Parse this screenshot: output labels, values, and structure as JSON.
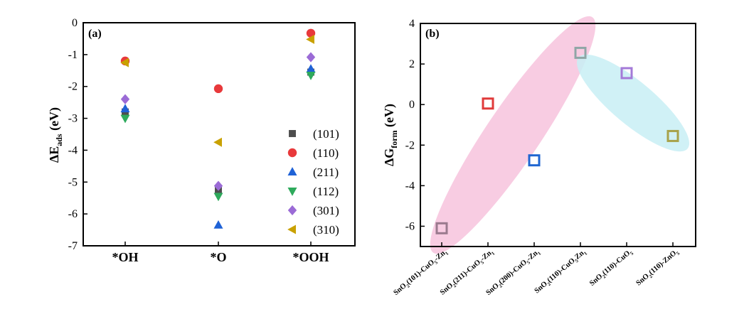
{
  "chart_data": [
    {
      "type": "scatter",
      "panel_label": "(a)",
      "ylabel": "ΔE",
      "ylabel_sub": "ads",
      "ylabel_unit": " (eV)",
      "xlabel": "",
      "categories": [
        "*OH",
        "*O",
        "*OOH"
      ],
      "ylim": [
        -7,
        0
      ],
      "yticks": [
        0,
        -1,
        -2,
        -3,
        -4,
        -5,
        -6,
        -7
      ],
      "ytick_labels": [
        "0",
        "-1",
        "-2",
        "-3",
        "-4",
        "-5",
        "-6",
        "-7"
      ],
      "grid": false,
      "legend_position": "bottom-right",
      "series": [
        {
          "name": "(101)",
          "marker": "square",
          "color": "#4d4d4d",
          "values": [
            -2.8,
            -5.25,
            -1.55
          ]
        },
        {
          "name": "(110)",
          "marker": "circle",
          "color": "#e8393b",
          "values": [
            -1.2,
            -2.07,
            -0.33
          ]
        },
        {
          "name": "(211)",
          "marker": "triangle-up",
          "color": "#1f62d6",
          "values": [
            -2.7,
            -6.35,
            -1.45
          ]
        },
        {
          "name": "(112)",
          "marker": "triangle-down",
          "color": "#2eaa5c",
          "values": [
            -3.0,
            -5.45,
            -1.65
          ]
        },
        {
          "name": "(301)",
          "marker": "diamond",
          "color": "#9b6bd6",
          "values": [
            -2.4,
            -5.12,
            -1.08
          ]
        },
        {
          "name": "(310)",
          "marker": "triangle-left",
          "color": "#c9a100",
          "values": [
            -1.25,
            -3.75,
            -0.52
          ]
        }
      ]
    },
    {
      "type": "scatter",
      "panel_label": "(b)",
      "ylabel": "ΔG",
      "ylabel_sub": "form",
      "ylabel_unit": " (eV)",
      "xlabel": "",
      "ylim": [
        -7,
        4
      ],
      "yticks": [
        4,
        2,
        0,
        -2,
        -4,
        -6
      ],
      "ytick_labels": [
        "4",
        "2",
        "0",
        "-2",
        "-4",
        "-6"
      ],
      "grid": false,
      "categories": [
        {
          "parts": [
            [
              "SnO",
              ""
            ],
            [
              "2",
              "sub"
            ],
            [
              "(101)-CuO",
              ""
            ],
            [
              "5",
              "sub"
            ],
            [
              "-Zn",
              ""
            ],
            [
              "1",
              "sub"
            ]
          ]
        },
        {
          "parts": [
            [
              "SnO",
              ""
            ],
            [
              "2",
              "sub"
            ],
            [
              "(211)-CuO",
              ""
            ],
            [
              "5",
              "sub"
            ],
            [
              "-Zn",
              ""
            ],
            [
              "1",
              "sub"
            ]
          ]
        },
        {
          "parts": [
            [
              "SnO",
              ""
            ],
            [
              "2",
              "sub"
            ],
            [
              "(200)-CuO",
              ""
            ],
            [
              "5",
              "sub"
            ],
            [
              "-Zn",
              ""
            ],
            [
              "1",
              "sub"
            ]
          ]
        },
        {
          "parts": [
            [
              "SnO",
              ""
            ],
            [
              "2",
              "sub"
            ],
            [
              "(110)-CuO",
              ""
            ],
            [
              "5",
              "sub"
            ],
            [
              "Zn",
              ""
            ],
            [
              "1",
              "sub"
            ]
          ]
        },
        {
          "parts": [
            [
              "SnO",
              ""
            ],
            [
              "2",
              "sub"
            ],
            [
              "(110)-CuO",
              ""
            ],
            [
              "5",
              "sub"
            ]
          ]
        },
        {
          "parts": [
            [
              "SnO",
              ""
            ],
            [
              "2",
              "sub"
            ],
            [
              "(110)-ZnO",
              ""
            ],
            [
              "5",
              "sub"
            ]
          ]
        }
      ],
      "points": [
        {
          "x": 0,
          "value": -6.1,
          "color": "#9a7a8e"
        },
        {
          "x": 1,
          "value": 0.05,
          "color": "#e03a3a"
        },
        {
          "x": 2,
          "value": -2.75,
          "color": "#1f66d1"
        },
        {
          "x": 3,
          "value": 2.55,
          "color": "#8fa6a6"
        },
        {
          "x": 4,
          "value": 1.55,
          "color": "#a47ad8"
        },
        {
          "x": 5,
          "value": -1.55,
          "color": "#a8a24a"
        }
      ],
      "shaded_regions": [
        {
          "color": "#f7c3dd",
          "spans_points": [
            0,
            1,
            2,
            3
          ]
        },
        {
          "color": "#c8eef5",
          "spans_points": [
            3,
            4,
            5
          ]
        }
      ]
    }
  ]
}
